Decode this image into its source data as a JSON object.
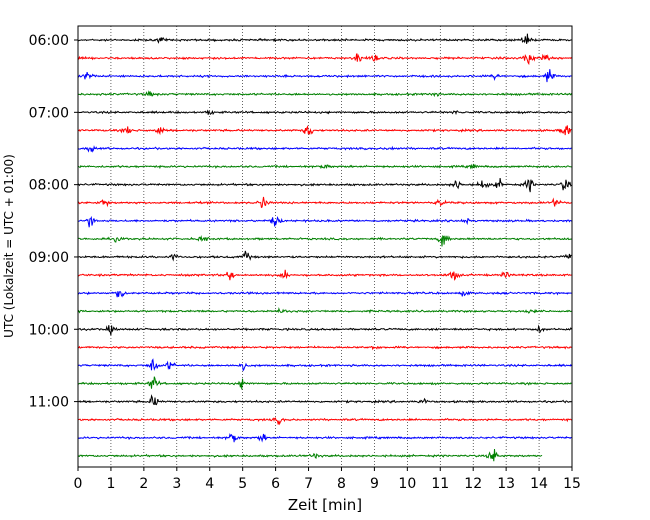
{
  "chart_data": {
    "type": "line",
    "xlabel": "Zeit  [min]",
    "ylabel": "UTC (Lokalzeit = UTC + 01:00)",
    "xlim": [
      0,
      15
    ],
    "x_ticks": [
      "0",
      "1",
      "2",
      "3",
      "4",
      "5",
      "6",
      "7",
      "8",
      "9",
      "10",
      "11",
      "12",
      "13",
      "14",
      "15"
    ],
    "y_tick_labels": [
      {
        "label": "06:00",
        "row": 0
      },
      {
        "label": "07:00",
        "row": 4
      },
      {
        "label": "08:00",
        "row": 8
      },
      {
        "label": "09:00",
        "row": 12
      },
      {
        "label": "10:00",
        "row": 16
      },
      {
        "label": "11:00",
        "row": 20
      }
    ],
    "grid": "vertical dotted at each minute",
    "row_interval_minutes": 15,
    "colors_cycle": [
      "#000000",
      "#ff0000",
      "#0000ff",
      "#008000"
    ],
    "series": [
      {
        "start": "06:00",
        "color": "#000000",
        "x_end": 15,
        "events": [
          [
            2.5,
            1.2
          ],
          [
            13.6,
            3.5
          ]
        ]
      },
      {
        "start": "06:15",
        "color": "#ff0000",
        "x_end": 15,
        "events": [
          [
            8.5,
            3
          ],
          [
            9.0,
            2.2
          ],
          [
            13.7,
            4.5
          ],
          [
            14.2,
            2
          ]
        ]
      },
      {
        "start": "06:30",
        "color": "#0000ff",
        "x_end": 15,
        "events": [
          [
            0.3,
            2.5
          ],
          [
            12.7,
            1.5
          ],
          [
            14.3,
            4
          ]
        ]
      },
      {
        "start": "06:45",
        "color": "#008000",
        "x_end": 15,
        "events": [
          [
            2.2,
            1.5
          ],
          [
            10.8,
            1.2
          ]
        ]
      },
      {
        "start": "07:00",
        "color": "#000000",
        "x_end": 15,
        "events": [
          [
            4.0,
            1.2
          ],
          [
            11.5,
            1
          ]
        ]
      },
      {
        "start": "07:15",
        "color": "#ff0000",
        "x_end": 15,
        "events": [
          [
            1.5,
            2.5
          ],
          [
            2.5,
            3
          ],
          [
            7.0,
            4
          ],
          [
            14.8,
            4.5
          ]
        ]
      },
      {
        "start": "07:30",
        "color": "#0000ff",
        "x_end": 15,
        "events": [
          [
            0.4,
            2.5
          ],
          [
            9.5,
            1.4
          ]
        ]
      },
      {
        "start": "07:45",
        "color": "#008000",
        "x_end": 15,
        "events": [
          [
            7.5,
            1.3
          ],
          [
            12.0,
            1.2
          ]
        ]
      },
      {
        "start": "08:00",
        "color": "#000000",
        "x_end": 15,
        "events": [
          [
            11.5,
            3
          ],
          [
            12.3,
            3.5
          ],
          [
            12.8,
            2.8
          ],
          [
            13.7,
            4
          ],
          [
            14.8,
            4
          ]
        ]
      },
      {
        "start": "08:15",
        "color": "#ff0000",
        "x_end": 15,
        "events": [
          [
            0.8,
            2.5
          ],
          [
            5.6,
            4.5
          ],
          [
            11.0,
            2
          ],
          [
            14.5,
            2.2
          ]
        ]
      },
      {
        "start": "08:30",
        "color": "#0000ff",
        "x_end": 15,
        "events": [
          [
            0.4,
            4
          ],
          [
            6.0,
            3.5
          ],
          [
            11.8,
            1.5
          ]
        ]
      },
      {
        "start": "08:45",
        "color": "#008000",
        "x_end": 15,
        "events": [
          [
            1.2,
            1.5
          ],
          [
            3.8,
            1.8
          ],
          [
            11.1,
            5
          ]
        ]
      },
      {
        "start": "09:00",
        "color": "#000000",
        "x_end": 15,
        "events": [
          [
            2.9,
            1.5
          ],
          [
            5.1,
            3
          ],
          [
            14.9,
            1.5
          ]
        ]
      },
      {
        "start": "09:15",
        "color": "#ff0000",
        "x_end": 15,
        "events": [
          [
            4.6,
            3
          ],
          [
            6.3,
            2
          ],
          [
            11.4,
            5
          ],
          [
            13.0,
            1.5
          ]
        ]
      },
      {
        "start": "09:30",
        "color": "#0000ff",
        "x_end": 15,
        "events": [
          [
            1.3,
            4
          ],
          [
            11.7,
            1.5
          ]
        ]
      },
      {
        "start": "09:45",
        "color": "#008000",
        "x_end": 15,
        "events": [
          [
            6.2,
            1.5
          ],
          [
            13.7,
            1.2
          ]
        ]
      },
      {
        "start": "10:00",
        "color": "#000000",
        "x_end": 15,
        "events": [
          [
            1.0,
            2.5
          ],
          [
            14.0,
            1.5
          ]
        ]
      },
      {
        "start": "10:15",
        "color": "#ff0000",
        "x_end": 15,
        "events": [
          [
            9.0,
            1.2
          ]
        ]
      },
      {
        "start": "10:30",
        "color": "#0000ff",
        "x_end": 15,
        "events": [
          [
            2.3,
            5
          ],
          [
            2.8,
            2.5
          ],
          [
            5.0,
            2.5
          ]
        ]
      },
      {
        "start": "10:45",
        "color": "#008000",
        "x_end": 15,
        "events": [
          [
            2.3,
            5
          ],
          [
            5.0,
            3
          ]
        ]
      },
      {
        "start": "11:00",
        "color": "#000000",
        "x_end": 15,
        "events": [
          [
            2.3,
            4
          ],
          [
            10.5,
            1.3
          ]
        ]
      },
      {
        "start": "11:15",
        "color": "#ff0000",
        "x_end": 15,
        "events": [
          [
            6.1,
            2
          ]
        ]
      },
      {
        "start": "11:30",
        "color": "#0000ff",
        "x_end": 15,
        "events": [
          [
            4.7,
            3.5
          ],
          [
            5.6,
            2.2
          ]
        ]
      },
      {
        "start": "11:45",
        "color": "#008000",
        "x_end": 14.1,
        "events": [
          [
            7.2,
            1.5
          ],
          [
            12.6,
            5.5
          ]
        ]
      }
    ]
  }
}
